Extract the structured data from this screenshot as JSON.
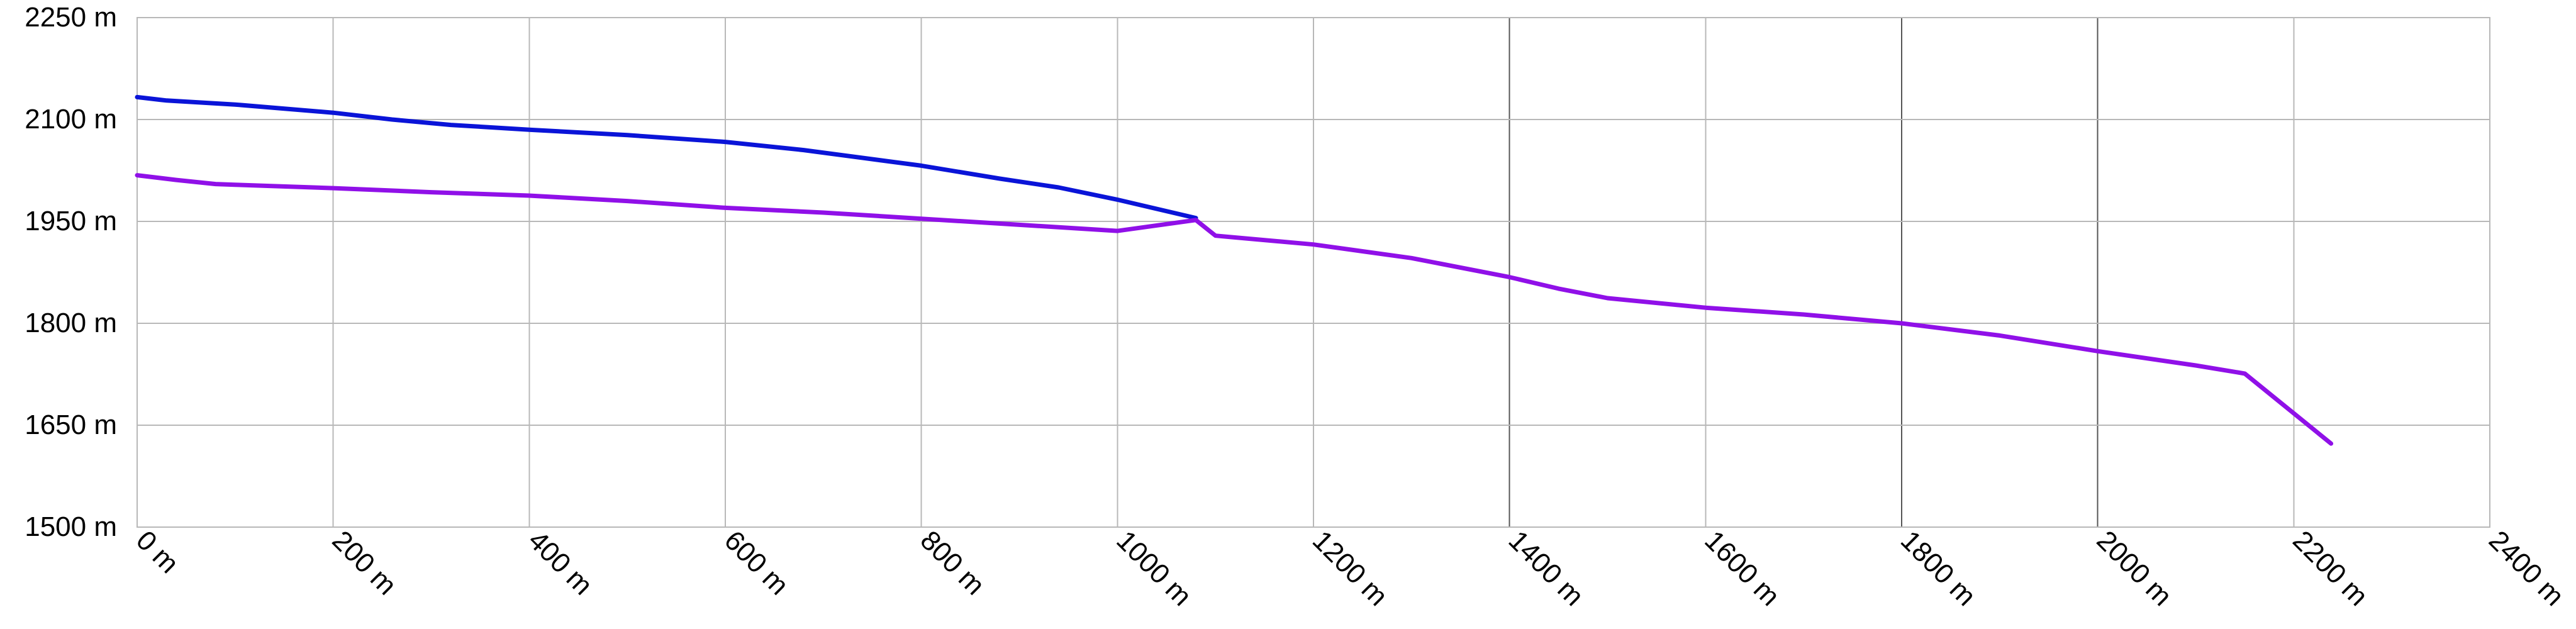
{
  "chart_data": {
    "type": "line",
    "title": "",
    "xlabel": "",
    "ylabel": "",
    "xlim": [
      0,
      2400
    ],
    "ylim": [
      1500,
      2250
    ],
    "x_ticks": [
      0,
      200,
      400,
      600,
      800,
      1000,
      1200,
      1400,
      1600,
      1800,
      2000,
      2200,
      2400
    ],
    "x_tick_labels": [
      "0 m",
      "200 m",
      "400 m",
      "600 m",
      "800 m",
      "1000 m",
      "1200 m",
      "1400 m",
      "1600 m",
      "1800 m",
      "2000 m",
      "2200 m",
      "2400 m"
    ],
    "y_ticks": [
      1500,
      1650,
      1800,
      1950,
      2100,
      2250
    ],
    "y_tick_labels": [
      "1500 m",
      "1650 m",
      "1800 m",
      "1950 m",
      "2100 m",
      "2250 m"
    ],
    "emphasized_x_gridlines": [
      1400,
      1800,
      2000
    ],
    "grid": true,
    "legend": "none",
    "series": [
      {
        "color": "#0a14d8",
        "points": [
          [
            0,
            2133
          ],
          [
            30,
            2128
          ],
          [
            100,
            2122
          ],
          [
            200,
            2110
          ],
          [
            260,
            2100
          ],
          [
            320,
            2092
          ],
          [
            400,
            2085
          ],
          [
            500,
            2077
          ],
          [
            600,
            2067
          ],
          [
            680,
            2055
          ],
          [
            800,
            2032
          ],
          [
            880,
            2013
          ],
          [
            940,
            2000
          ],
          [
            1000,
            1982
          ],
          [
            1080,
            1955
          ]
        ]
      },
      {
        "color": "#9010e8",
        "points": [
          [
            0,
            2018
          ],
          [
            40,
            2011
          ],
          [
            80,
            2005
          ],
          [
            100,
            2004
          ],
          [
            200,
            1999
          ],
          [
            300,
            1993
          ],
          [
            400,
            1988
          ],
          [
            500,
            1980
          ],
          [
            600,
            1970
          ],
          [
            700,
            1963
          ],
          [
            800,
            1954
          ],
          [
            900,
            1945
          ],
          [
            1000,
            1936
          ],
          [
            1080,
            1952
          ],
          [
            1100,
            1929
          ],
          [
            1200,
            1916
          ],
          [
            1300,
            1896
          ],
          [
            1400,
            1868
          ],
          [
            1450,
            1851
          ],
          [
            1500,
            1837
          ],
          [
            1600,
            1823
          ],
          [
            1700,
            1813
          ],
          [
            1800,
            1800
          ],
          [
            1900,
            1782
          ],
          [
            2000,
            1759
          ],
          [
            2100,
            1738
          ],
          [
            2150,
            1726
          ],
          [
            2238,
            1623
          ]
        ]
      }
    ]
  }
}
